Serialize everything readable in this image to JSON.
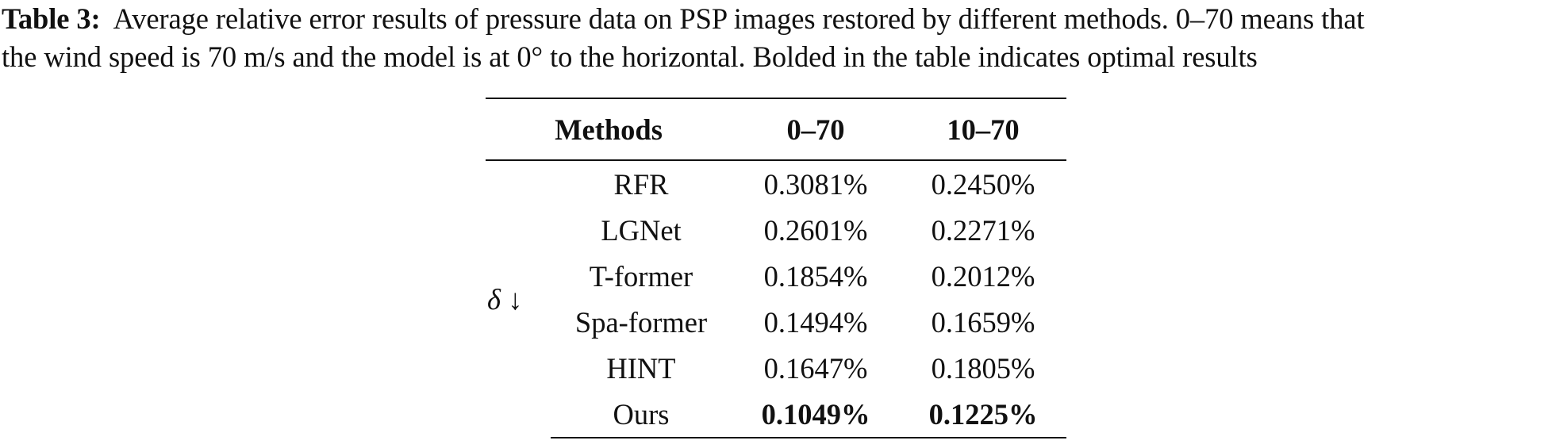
{
  "caption": {
    "label": "Table 3:",
    "line1_text": "Average relative error results of pressure data on PSP images restored by different methods. 0–70 means that",
    "line2_text": "the wind speed is 70 m/s and the model is at 0° to the horizontal. Bolded in the table indicates optimal results"
  },
  "table": {
    "headers": [
      "Methods",
      "0–70",
      "10–70"
    ],
    "metric_symbol": "δ",
    "metric_arrow": "↓",
    "rows": [
      {
        "method": "RFR",
        "v0_70": "0.3081%",
        "v10_70": "0.2450%",
        "best": false
      },
      {
        "method": "LGNet",
        "v0_70": "0.2601%",
        "v10_70": "0.2271%",
        "best": false
      },
      {
        "method": "T-former",
        "v0_70": "0.1854%",
        "v10_70": "0.2012%",
        "best": false
      },
      {
        "method": "Spa-former",
        "v0_70": "0.1494%",
        "v10_70": "0.1659%",
        "best": false
      },
      {
        "method": "HINT",
        "v0_70": "0.1647%",
        "v10_70": "0.1805%",
        "best": false
      },
      {
        "method": "Ours",
        "v0_70": "0.1049%",
        "v10_70": "0.1225%",
        "best": true
      }
    ]
  }
}
